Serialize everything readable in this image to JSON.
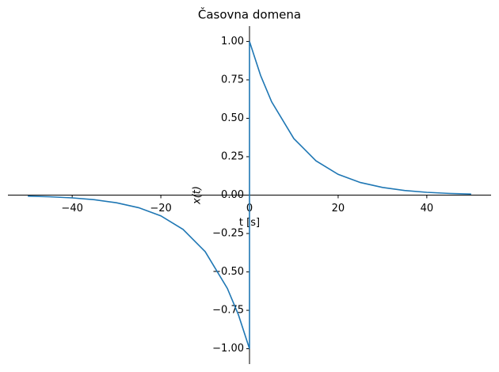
{
  "chart_data": {
    "type": "line",
    "title": "Časovna domena",
    "xlabel": "t [s]",
    "ylabel": "x(t)",
    "series": [
      {
        "name": "x(t)",
        "color": "#1f77b4",
        "x": [
          -50,
          -45,
          -40,
          -35,
          -30,
          -25,
          -20,
          -15,
          -10,
          -5,
          -2.5,
          0,
          0,
          2.5,
          5,
          10,
          15,
          20,
          25,
          30,
          35,
          40,
          45,
          50
        ],
        "values": [
          -0.007,
          -0.011,
          -0.018,
          -0.03,
          -0.05,
          -0.082,
          -0.135,
          -0.223,
          -0.368,
          -0.607,
          -0.779,
          -1,
          1,
          0.779,
          0.607,
          0.368,
          0.223,
          0.135,
          0.082,
          0.05,
          0.03,
          0.018,
          0.011,
          0.007
        ]
      }
    ],
    "xlim": [
      -54.5,
      54.5
    ],
    "ylim": [
      -1.1,
      1.1
    ],
    "xticks": [
      {
        "value": -40,
        "label": "−40"
      },
      {
        "value": -20,
        "label": "−20"
      },
      0,
      20,
      40
    ],
    "yticks": [
      {
        "value": -1,
        "label": "−1.00"
      },
      {
        "value": -0.75,
        "label": "−0.75"
      },
      {
        "value": -0.5,
        "label": "−0.50"
      },
      {
        "value": -0.25,
        "label": "−0.25"
      },
      {
        "value": 0,
        "label": "0.00"
      },
      {
        "value": 0.25,
        "label": "0.25"
      },
      {
        "value": 0.5,
        "label": "0.50"
      },
      {
        "value": 0.75,
        "label": "0.75"
      },
      {
        "value": 1,
        "label": "1.00"
      }
    ]
  }
}
